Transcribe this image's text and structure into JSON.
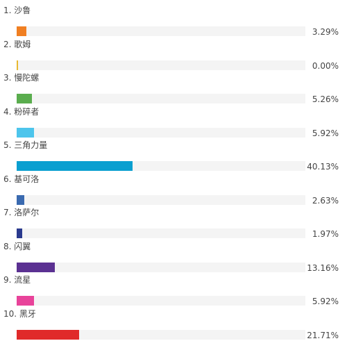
{
  "chart_data": {
    "type": "bar",
    "orientation": "horizontal",
    "categories": [
      "沙鲁",
      "歌姆",
      "慢陀螺",
      "粉碎者",
      "三角力量",
      "基可洛",
      "洛萨尔",
      "闪翼",
      "流星",
      "黑牙"
    ],
    "values": [
      3.29,
      0.0,
      5.26,
      5.92,
      40.13,
      2.63,
      1.97,
      13.16,
      5.92,
      21.71
    ],
    "value_labels": [
      "3.29%",
      "0.00%",
      "5.26%",
      "5.92%",
      "40.13%",
      "2.63%",
      "1.97%",
      "13.16%",
      "5.92%",
      "21.71%"
    ],
    "ranks": [
      "1.",
      "2.",
      "3.",
      "4.",
      "5.",
      "6.",
      "7.",
      "8.",
      "9.",
      "10."
    ],
    "colors": [
      "#f07f22",
      "#e8b830",
      "#5aad4e",
      "#4dc5ec",
      "#0a9fd0",
      "#3a6ab0",
      "#2a3a8e",
      "#5b3192",
      "#e8439a",
      "#e02a2a"
    ],
    "track_color": "#f4f4f4",
    "xlim": [
      0,
      100
    ],
    "grid": false,
    "legend": "none"
  }
}
